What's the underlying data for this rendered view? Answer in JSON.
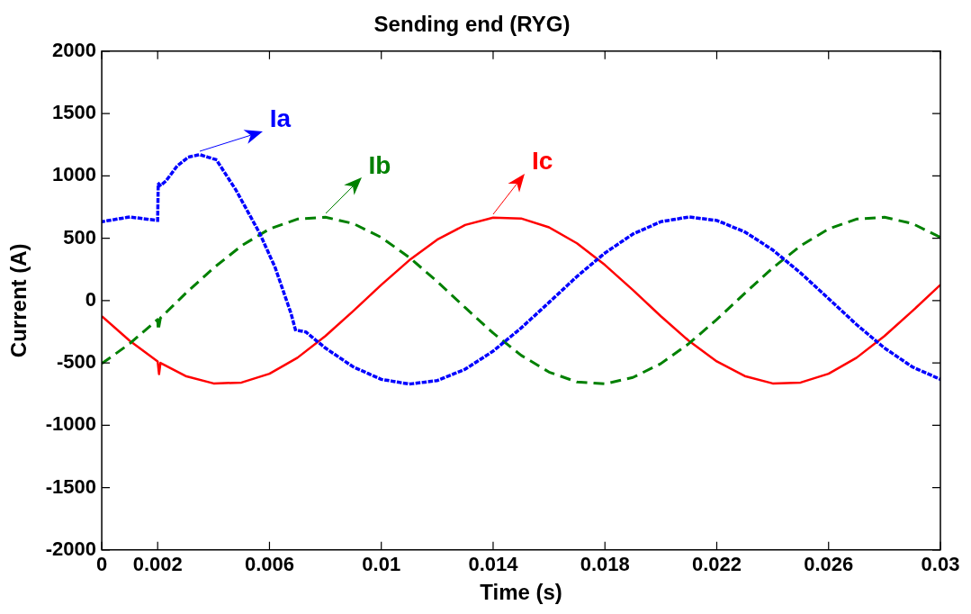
{
  "chart_data": {
    "type": "line",
    "title": "Sending end (RYG)",
    "xlabel": "Time (s)",
    "ylabel": "Current (A)",
    "xlim": [
      0,
      0.03
    ],
    "xticks": [
      0,
      0.002,
      0.006,
      0.01,
      0.014,
      0.018,
      0.022,
      0.026,
      0.03
    ],
    "ylim": [
      -2000,
      2000
    ],
    "yticks": [
      -2000,
      -1500,
      -1000,
      -500,
      0,
      500,
      1000,
      1500,
      2000
    ],
    "grid": false,
    "legend": false,
    "marker": "none",
    "series": [
      {
        "name": "Ia",
        "color": "#0000ff",
        "line_style": "dotted",
        "x": [
          0,
          0.001,
          0.002,
          0.00202,
          0.0021,
          0.0023,
          0.0027,
          0.0031,
          0.0035,
          0.0041,
          0.0048,
          0.00565,
          0.0062,
          0.00677,
          0.00693,
          0.0073,
          0.008,
          0.009,
          0.01,
          0.011,
          0.012,
          0.013,
          0.014,
          0.015,
          0.016,
          0.017,
          0.018,
          0.019,
          0.02,
          0.021,
          0.022,
          0.023,
          0.024,
          0.025,
          0.026,
          0.027,
          0.028,
          0.029,
          0.03
        ],
        "values": [
          632,
          670,
          642,
          940,
          920,
          960,
          1080,
          1150,
          1170,
          1129,
          886,
          539,
          266,
          -103,
          -236,
          -252,
          -381,
          -533,
          -632,
          -670,
          -642,
          -551,
          -406,
          -221,
          -15,
          193,
          381,
          533,
          632,
          670,
          642,
          551,
          406,
          221,
          15,
          -193,
          -381,
          -533,
          -632
        ]
      },
      {
        "name": "Ib",
        "color": "#008000",
        "line_style": "dashed",
        "x": [
          0,
          0.001,
          0.002,
          0.00202,
          0.0021,
          0.003,
          0.004,
          0.005,
          0.006,
          0.007,
          0.008,
          0.009,
          0.01,
          0.011,
          0.012,
          0.013,
          0.014,
          0.015,
          0.016,
          0.017,
          0.018,
          0.019,
          0.02,
          0.021,
          0.022,
          0.023,
          0.024,
          0.025,
          0.026,
          0.027,
          0.028,
          0.029,
          0.03
        ],
        "values": [
          -506,
          -346,
          -152,
          -240,
          -140,
          57,
          261,
          439,
          574,
          653,
          668,
          617,
          506,
          346,
          152,
          -57,
          -261,
          -439,
          -574,
          -653,
          -668,
          -617,
          -506,
          -346,
          -152,
          57,
          261,
          439,
          574,
          653,
          668,
          617,
          506
        ]
      },
      {
        "name": "Ic",
        "color": "#ff0000",
        "line_style": "solid",
        "x": [
          0,
          0.001,
          0.002,
          0.00205,
          0.0021,
          0.003,
          0.004,
          0.005,
          0.006,
          0.007,
          0.008,
          0.009,
          0.01,
          0.011,
          0.012,
          0.013,
          0.014,
          0.015,
          0.016,
          0.017,
          0.018,
          0.019,
          0.02,
          0.021,
          0.022,
          0.023,
          0.024,
          0.025,
          0.026,
          0.027,
          0.028,
          0.029,
          0.03
        ],
        "values": [
          -126,
          -323,
          -488,
          -590,
          -500,
          -606,
          -665,
          -658,
          -587,
          -459,
          -285,
          -84,
          126,
          323,
          488,
          606,
          665,
          658,
          587,
          459,
          285,
          84,
          -126,
          -323,
          -488,
          -606,
          -665,
          -658,
          -587,
          -459,
          -285,
          -84,
          126
        ]
      }
    ]
  }
}
